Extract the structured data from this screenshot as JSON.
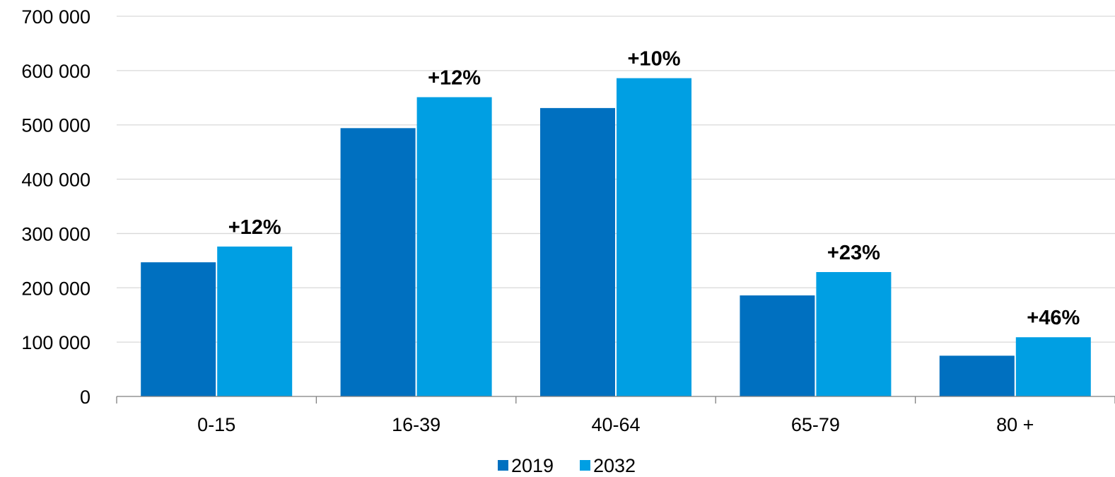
{
  "chart_data": {
    "type": "bar",
    "categories": [
      "0-15",
      "16-39",
      "40-64",
      "65-79",
      "80 +"
    ],
    "series": [
      {
        "name": "2019",
        "values": [
          247000,
          494000,
          531000,
          186000,
          75000
        ],
        "color": "#0070C0"
      },
      {
        "name": "2032",
        "values": [
          276000,
          551000,
          586000,
          229000,
          109000
        ],
        "color": "#009FE3"
      }
    ],
    "annotations": [
      "+12%",
      "+12%",
      "+10%",
      "+23%",
      "+46%"
    ],
    "ylim": [
      0,
      700000
    ],
    "yticks": [
      0,
      100000,
      200000,
      300000,
      400000,
      500000,
      600000,
      700000
    ],
    "ytick_labels": [
      "0",
      "100 000",
      "200 000",
      "300 000",
      "400 000",
      "500 000",
      "600 000",
      "700 000"
    ],
    "grid": true,
    "legend_position": "bottom",
    "title": "",
    "xlabel": "",
    "ylabel": ""
  }
}
